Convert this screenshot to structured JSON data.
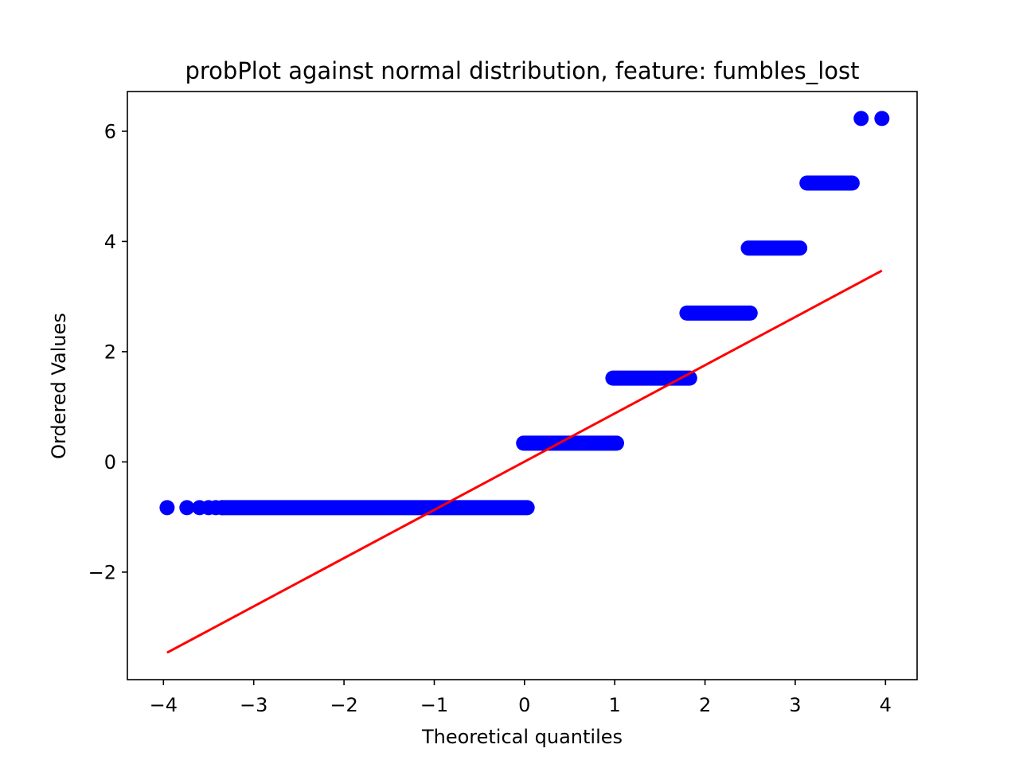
{
  "chart_data": {
    "type": "scatter",
    "title": "probPlot against normal distribution, feature: fumbles_lost",
    "xlabel": "Theoretical quantiles",
    "ylabel": "Ordered Values",
    "xlim": [
      -4.4,
      4.35
    ],
    "ylim": [
      -3.95,
      6.72
    ],
    "xticks": [
      {
        "value": -4,
        "label": "−4"
      },
      {
        "value": -3,
        "label": "−3"
      },
      {
        "value": -2,
        "label": "−2"
      },
      {
        "value": -1,
        "label": "−1"
      },
      {
        "value": 0,
        "label": "0"
      },
      {
        "value": 1,
        "label": "1"
      },
      {
        "value": 2,
        "label": "2"
      },
      {
        "value": 3,
        "label": "3"
      },
      {
        "value": 4,
        "label": "4"
      }
    ],
    "yticks": [
      {
        "value": -2,
        "label": "−2"
      },
      {
        "value": 0,
        "label": "0"
      },
      {
        "value": 2,
        "label": "2"
      },
      {
        "value": 4,
        "label": "4"
      },
      {
        "value": 6,
        "label": "6"
      }
    ],
    "grid": false,
    "point_color": "#0000ff",
    "line_color": "#ff0000",
    "series": [
      {
        "type": "scatter",
        "points": [
          {
            "x": -3.96,
            "y": -0.83
          },
          {
            "x": -3.74,
            "y": -0.83
          },
          {
            "x": -3.6,
            "y": -0.83
          },
          {
            "x": -3.5,
            "y": -0.83
          },
          {
            "x": -3.42,
            "y": -0.83
          },
          {
            "x": -3.35,
            "y": -0.83
          }
        ],
        "segments": [
          {
            "x_start": -3.35,
            "x_end": 0.03,
            "y": -0.83
          },
          {
            "x_start": -0.01,
            "x_end": 1.02,
            "y": 0.34
          },
          {
            "x_start": 0.98,
            "x_end": 1.83,
            "y": 1.52
          },
          {
            "x_start": 1.8,
            "x_end": 2.5,
            "y": 2.7
          },
          {
            "x_start": 2.48,
            "x_end": 3.05,
            "y": 3.88
          },
          {
            "x_start": 3.13,
            "x_end": 3.63,
            "y": 5.06
          }
        ],
        "points_tail": [
          {
            "x": 3.73,
            "y": 6.23
          },
          {
            "x": 3.96,
            "y": 6.23
          }
        ]
      },
      {
        "type": "line",
        "points": [
          {
            "x": -3.96,
            "y": -3.46
          },
          {
            "x": 3.96,
            "y": 3.47
          }
        ]
      }
    ]
  }
}
